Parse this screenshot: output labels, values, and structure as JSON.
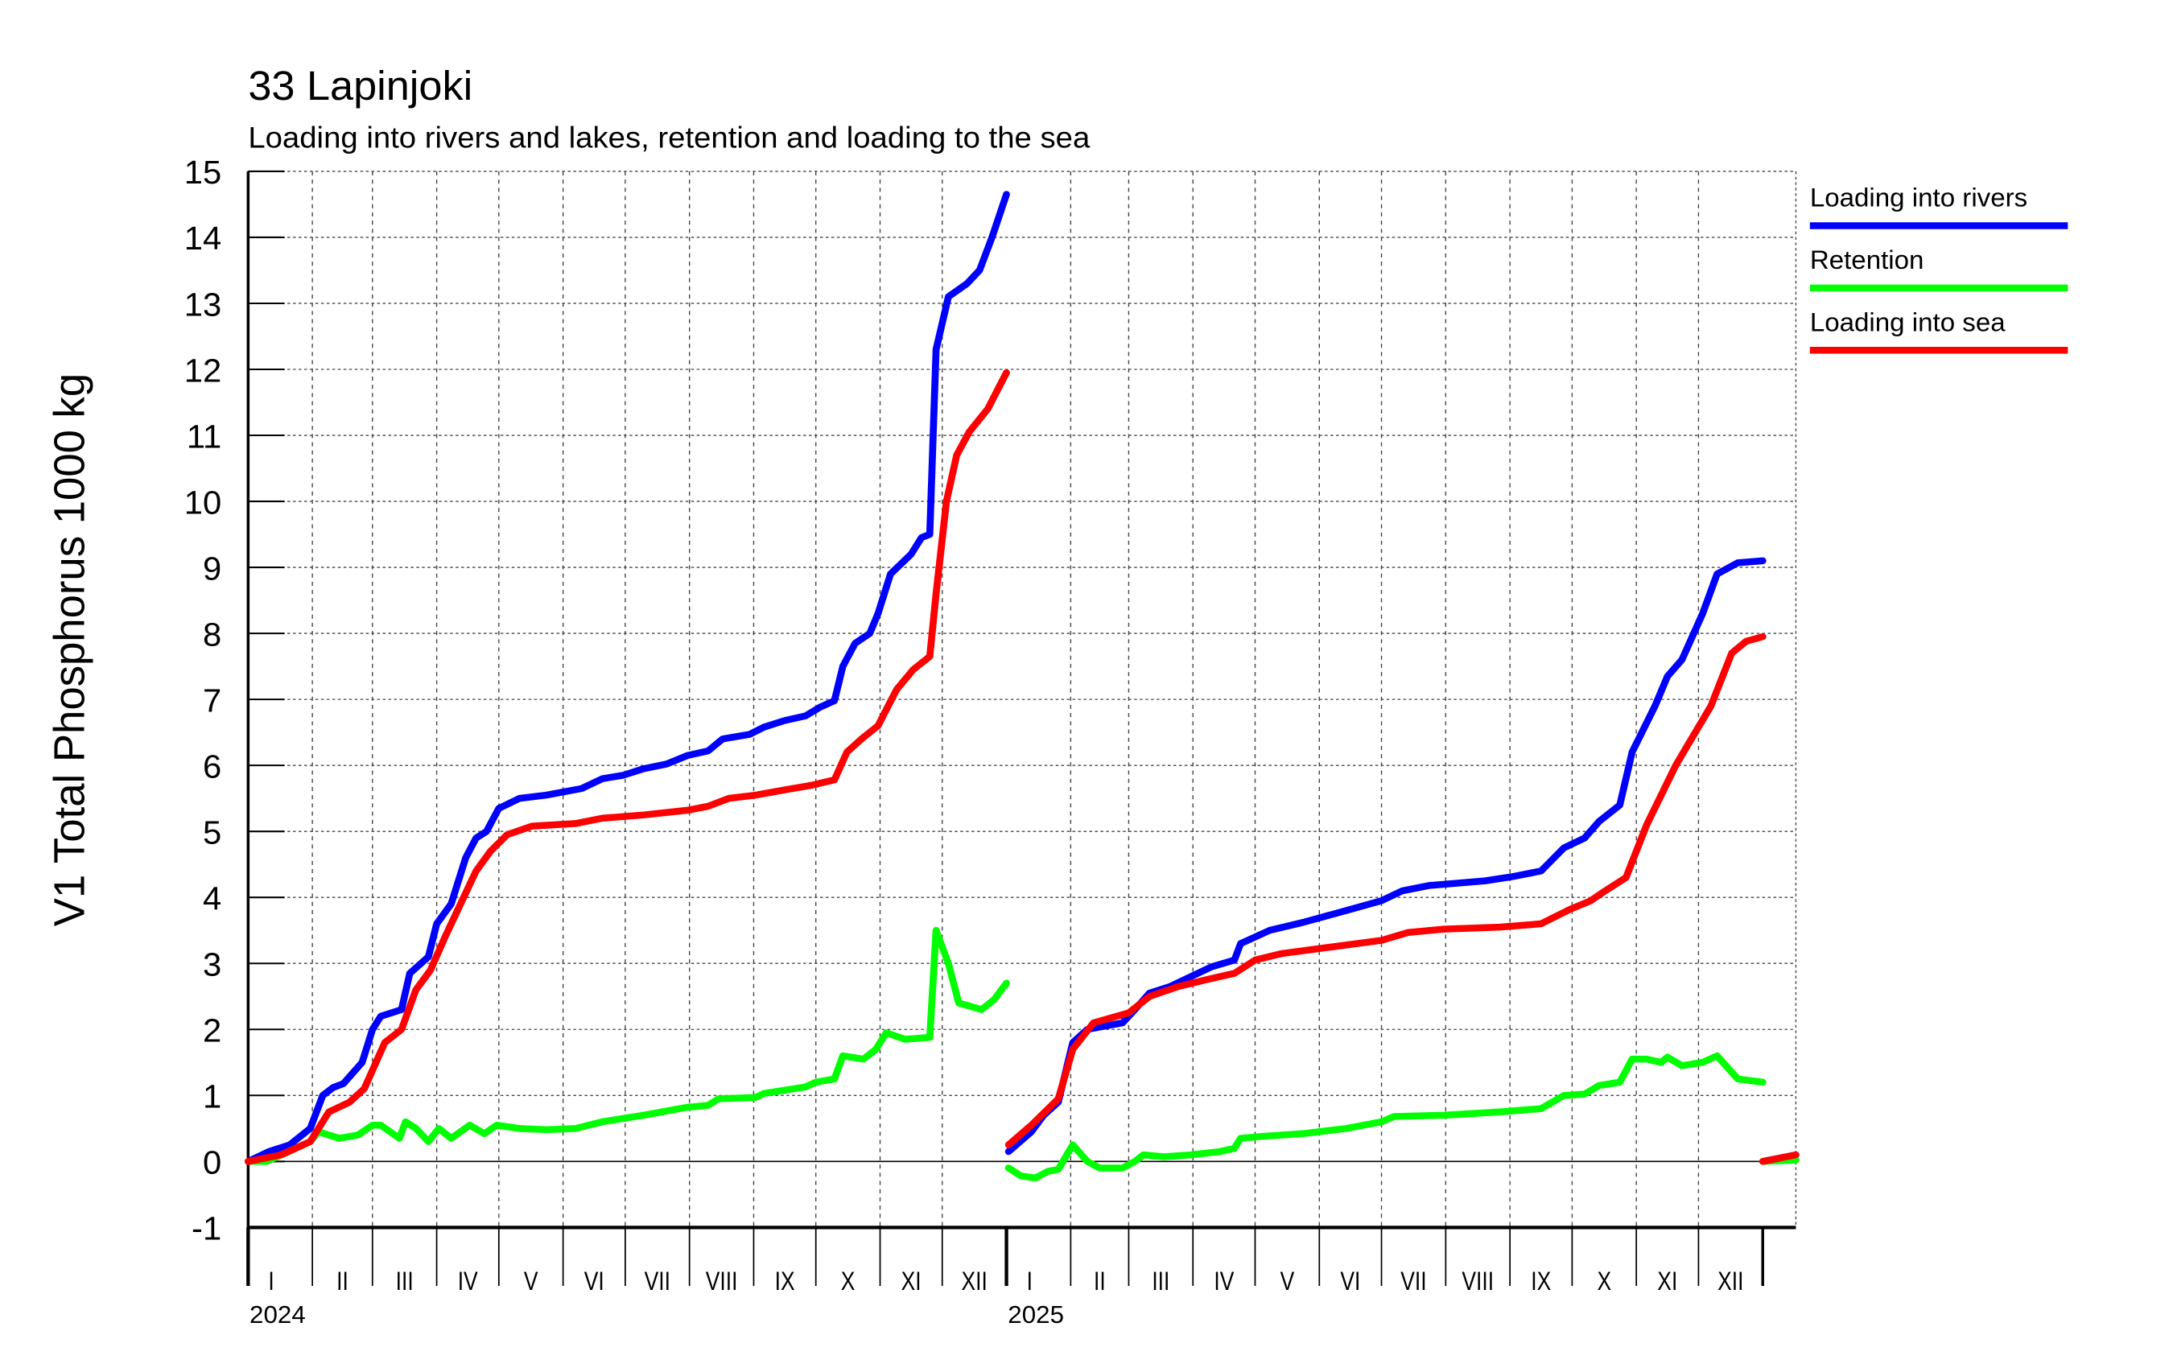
{
  "chart_data": {
    "type": "line",
    "title": "33 Lapinjoki",
    "subtitle": "Loading into rivers and lakes, retention and loading to the sea",
    "ylabel": "V1 Total Phosphorus 1000 kg",
    "ylim": [
      -1,
      15
    ],
    "yticks": [
      "-1",
      "0",
      "1",
      "2",
      "3",
      "4",
      "5",
      "6",
      "7",
      "8",
      "9",
      "10",
      "11",
      "12",
      "13",
      "14",
      "15"
    ],
    "x_unit": "days since 2024-01-01",
    "xlim": [
      0,
      747
    ],
    "grid": true,
    "legend_position": "right",
    "month_labels": [
      "I",
      "II",
      "III",
      "IV",
      "V",
      "VI",
      "VII",
      "VIII",
      "IX",
      "X",
      "XI",
      "XII"
    ],
    "month_starts_2024": [
      0,
      31,
      60,
      91,
      121,
      152,
      182,
      213,
      244,
      274,
      305,
      335,
      366
    ],
    "month_starts_2025": [
      366,
      397,
      425,
      456,
      486,
      517,
      547,
      578,
      609,
      639,
      670,
      700,
      731
    ],
    "years": [
      {
        "label": "2024",
        "start": 0
      },
      {
        "label": "2025",
        "start": 366
      }
    ],
    "series": [
      {
        "name": "Loading into rivers",
        "color": "#0000ff",
        "segments": [
          [
            [
              0,
              0
            ],
            [
              10,
              0.15
            ],
            [
              20,
              0.25
            ],
            [
              30,
              0.5
            ],
            [
              36,
              1.0
            ],
            [
              41,
              1.12
            ],
            [
              46,
              1.18
            ],
            [
              55,
              1.5
            ],
            [
              60,
              2.0
            ],
            [
              64,
              2.2
            ],
            [
              74,
              2.3
            ],
            [
              78,
              2.85
            ],
            [
              87,
              3.1
            ],
            [
              91,
              3.6
            ],
            [
              98,
              3.9
            ],
            [
              105,
              4.6
            ],
            [
              110,
              4.9
            ],
            [
              115,
              5.0
            ],
            [
              121,
              5.35
            ],
            [
              131,
              5.5
            ],
            [
              144,
              5.55
            ],
            [
              161,
              5.65
            ],
            [
              171,
              5.8
            ],
            [
              181,
              5.85
            ],
            [
              191,
              5.95
            ],
            [
              202,
              6.02
            ],
            [
              212,
              6.15
            ],
            [
              222,
              6.22
            ],
            [
              229,
              6.4
            ],
            [
              242,
              6.47
            ],
            [
              249,
              6.58
            ],
            [
              259,
              6.68
            ],
            [
              269,
              6.75
            ],
            [
              276,
              6.88
            ],
            [
              283,
              6.98
            ],
            [
              287,
              7.5
            ],
            [
              293,
              7.85
            ],
            [
              300,
              8.0
            ],
            [
              304,
              8.3
            ],
            [
              310,
              8.9
            ],
            [
              320,
              9.2
            ],
            [
              325,
              9.45
            ],
            [
              329,
              9.5
            ],
            [
              332,
              12.3
            ],
            [
              338,
              13.1
            ],
            [
              347,
              13.3
            ],
            [
              353,
              13.5
            ],
            [
              359,
              14.0
            ],
            [
              366,
              14.65
            ]
          ],
          [
            [
              367,
              0.15
            ],
            [
              378,
              0.45
            ],
            [
              384,
              0.7
            ],
            [
              391,
              0.9
            ],
            [
              398,
              1.8
            ],
            [
              405,
              2.0
            ],
            [
              422,
              2.1
            ],
            [
              428,
              2.3
            ],
            [
              435,
              2.55
            ],
            [
              445,
              2.65
            ],
            [
              455,
              2.8
            ],
            [
              465,
              2.95
            ],
            [
              476,
              3.05
            ],
            [
              479,
              3.3
            ],
            [
              493,
              3.5
            ],
            [
              509,
              3.62
            ],
            [
              530,
              3.8
            ],
            [
              547,
              3.95
            ],
            [
              557,
              4.1
            ],
            [
              570,
              4.18
            ],
            [
              597,
              4.25
            ],
            [
              611,
              4.32
            ],
            [
              624,
              4.4
            ],
            [
              635,
              4.75
            ],
            [
              645,
              4.9
            ],
            [
              652,
              5.15
            ],
            [
              662,
              5.4
            ],
            [
              668,
              6.2
            ],
            [
              679,
              6.9
            ],
            [
              685,
              7.35
            ],
            [
              692,
              7.6
            ],
            [
              702,
              8.3
            ],
            [
              709,
              8.9
            ],
            [
              719,
              9.07
            ],
            [
              731,
              9.1
            ]
          ],
          [
            [
              731,
              0
            ],
            [
              747,
              0.1
            ]
          ]
        ]
      },
      {
        "name": "Retention",
        "color": "#00ff00",
        "segments": [
          [
            [
              0,
              0
            ],
            [
              9,
              0
            ],
            [
              16,
              0.1
            ],
            [
              30,
              0.3
            ],
            [
              34,
              0.45
            ],
            [
              44,
              0.35
            ],
            [
              53,
              0.4
            ],
            [
              60,
              0.55
            ],
            [
              64,
              0.55
            ],
            [
              73,
              0.35
            ],
            [
              76,
              0.6
            ],
            [
              81,
              0.5
            ],
            [
              87,
              0.3
            ],
            [
              92,
              0.5
            ],
            [
              98,
              0.35
            ],
            [
              107,
              0.55
            ],
            [
              114,
              0.42
            ],
            [
              120,
              0.55
            ],
            [
              131,
              0.5
            ],
            [
              144,
              0.48
            ],
            [
              158,
              0.5
            ],
            [
              171,
              0.6
            ],
            [
              191,
              0.7
            ],
            [
              212,
              0.82
            ],
            [
              222,
              0.85
            ],
            [
              227,
              0.95
            ],
            [
              245,
              0.97
            ],
            [
              249,
              1.03
            ],
            [
              269,
              1.13
            ],
            [
              274,
              1.2
            ],
            [
              283,
              1.25
            ],
            [
              287,
              1.6
            ],
            [
              297,
              1.55
            ],
            [
              303,
              1.7
            ],
            [
              308,
              1.95
            ],
            [
              317,
              1.85
            ],
            [
              329,
              1.88
            ],
            [
              332,
              3.5
            ],
            [
              338,
              3.0
            ],
            [
              343,
              2.4
            ],
            [
              354,
              2.3
            ],
            [
              360,
              2.45
            ],
            [
              366,
              2.7
            ]
          ],
          [
            [
              367,
              -0.1
            ],
            [
              373,
              -0.22
            ],
            [
              380,
              -0.25
            ],
            [
              386,
              -0.15
            ],
            [
              391,
              -0.12
            ],
            [
              398,
              0.25
            ],
            [
              405,
              0.0
            ],
            [
              411,
              -0.1
            ],
            [
              422,
              -0.1
            ],
            [
              428,
              0.0
            ],
            [
              432,
              0.1
            ],
            [
              442,
              0.07
            ],
            [
              455,
              0.1
            ],
            [
              469,
              0.15
            ],
            [
              476,
              0.2
            ],
            [
              479,
              0.35
            ],
            [
              489,
              0.38
            ],
            [
              509,
              0.42
            ],
            [
              530,
              0.5
            ],
            [
              547,
              0.6
            ],
            [
              553,
              0.68
            ],
            [
              577,
              0.7
            ],
            [
              604,
              0.75
            ],
            [
              624,
              0.8
            ],
            [
              635,
              1.0
            ],
            [
              645,
              1.02
            ],
            [
              652,
              1.15
            ],
            [
              662,
              1.2
            ],
            [
              668,
              1.55
            ],
            [
              675,
              1.55
            ],
            [
              682,
              1.5
            ],
            [
              685,
              1.58
            ],
            [
              692,
              1.45
            ],
            [
              702,
              1.5
            ],
            [
              709,
              1.6
            ],
            [
              719,
              1.25
            ],
            [
              731,
              1.2
            ]
          ],
          [
            [
              731,
              0
            ],
            [
              747,
              0.02
            ]
          ]
        ]
      },
      {
        "name": "Loading into sea",
        "color": "#ff0000",
        "segments": [
          [
            [
              0,
              0
            ],
            [
              16,
              0.1
            ],
            [
              30,
              0.3
            ],
            [
              39,
              0.75
            ],
            [
              49,
              0.9
            ],
            [
              56,
              1.1
            ],
            [
              66,
              1.8
            ],
            [
              74,
              2.0
            ],
            [
              81,
              2.6
            ],
            [
              88,
              2.9
            ],
            [
              95,
              3.4
            ],
            [
              101,
              3.8
            ],
            [
              110,
              4.4
            ],
            [
              117,
              4.7
            ],
            [
              125,
              4.95
            ],
            [
              137,
              5.08
            ],
            [
              158,
              5.12
            ],
            [
              171,
              5.2
            ],
            [
              191,
              5.25
            ],
            [
              212,
              5.32
            ],
            [
              222,
              5.38
            ],
            [
              232,
              5.5
            ],
            [
              245,
              5.55
            ],
            [
              259,
              5.63
            ],
            [
              272,
              5.7
            ],
            [
              283,
              5.78
            ],
            [
              289,
              6.2
            ],
            [
              296,
              6.4
            ],
            [
              304,
              6.6
            ],
            [
              313,
              7.15
            ],
            [
              321,
              7.45
            ],
            [
              329,
              7.65
            ],
            [
              332,
              8.6
            ],
            [
              337,
              10.0
            ],
            [
              342,
              10.7
            ],
            [
              348,
              11.05
            ],
            [
              357,
              11.4
            ],
            [
              366,
              11.95
            ]
          ],
          [
            [
              367,
              0.25
            ],
            [
              378,
              0.55
            ],
            [
              391,
              0.95
            ],
            [
              398,
              1.7
            ],
            [
              408,
              2.1
            ],
            [
              425,
              2.25
            ],
            [
              435,
              2.5
            ],
            [
              449,
              2.65
            ],
            [
              462,
              2.75
            ],
            [
              476,
              2.85
            ],
            [
              486,
              3.05
            ],
            [
              499,
              3.15
            ],
            [
              523,
              3.25
            ],
            [
              547,
              3.35
            ],
            [
              560,
              3.47
            ],
            [
              577,
              3.52
            ],
            [
              604,
              3.55
            ],
            [
              624,
              3.6
            ],
            [
              638,
              3.82
            ],
            [
              648,
              3.95
            ],
            [
              655,
              4.1
            ],
            [
              665,
              4.3
            ],
            [
              675,
              5.1
            ],
            [
              689,
              6.0
            ],
            [
              706,
              6.9
            ],
            [
              716,
              7.7
            ],
            [
              723,
              7.88
            ],
            [
              731,
              7.95
            ]
          ],
          [
            [
              731,
              0
            ],
            [
              747,
              0.1
            ]
          ]
        ]
      }
    ]
  }
}
